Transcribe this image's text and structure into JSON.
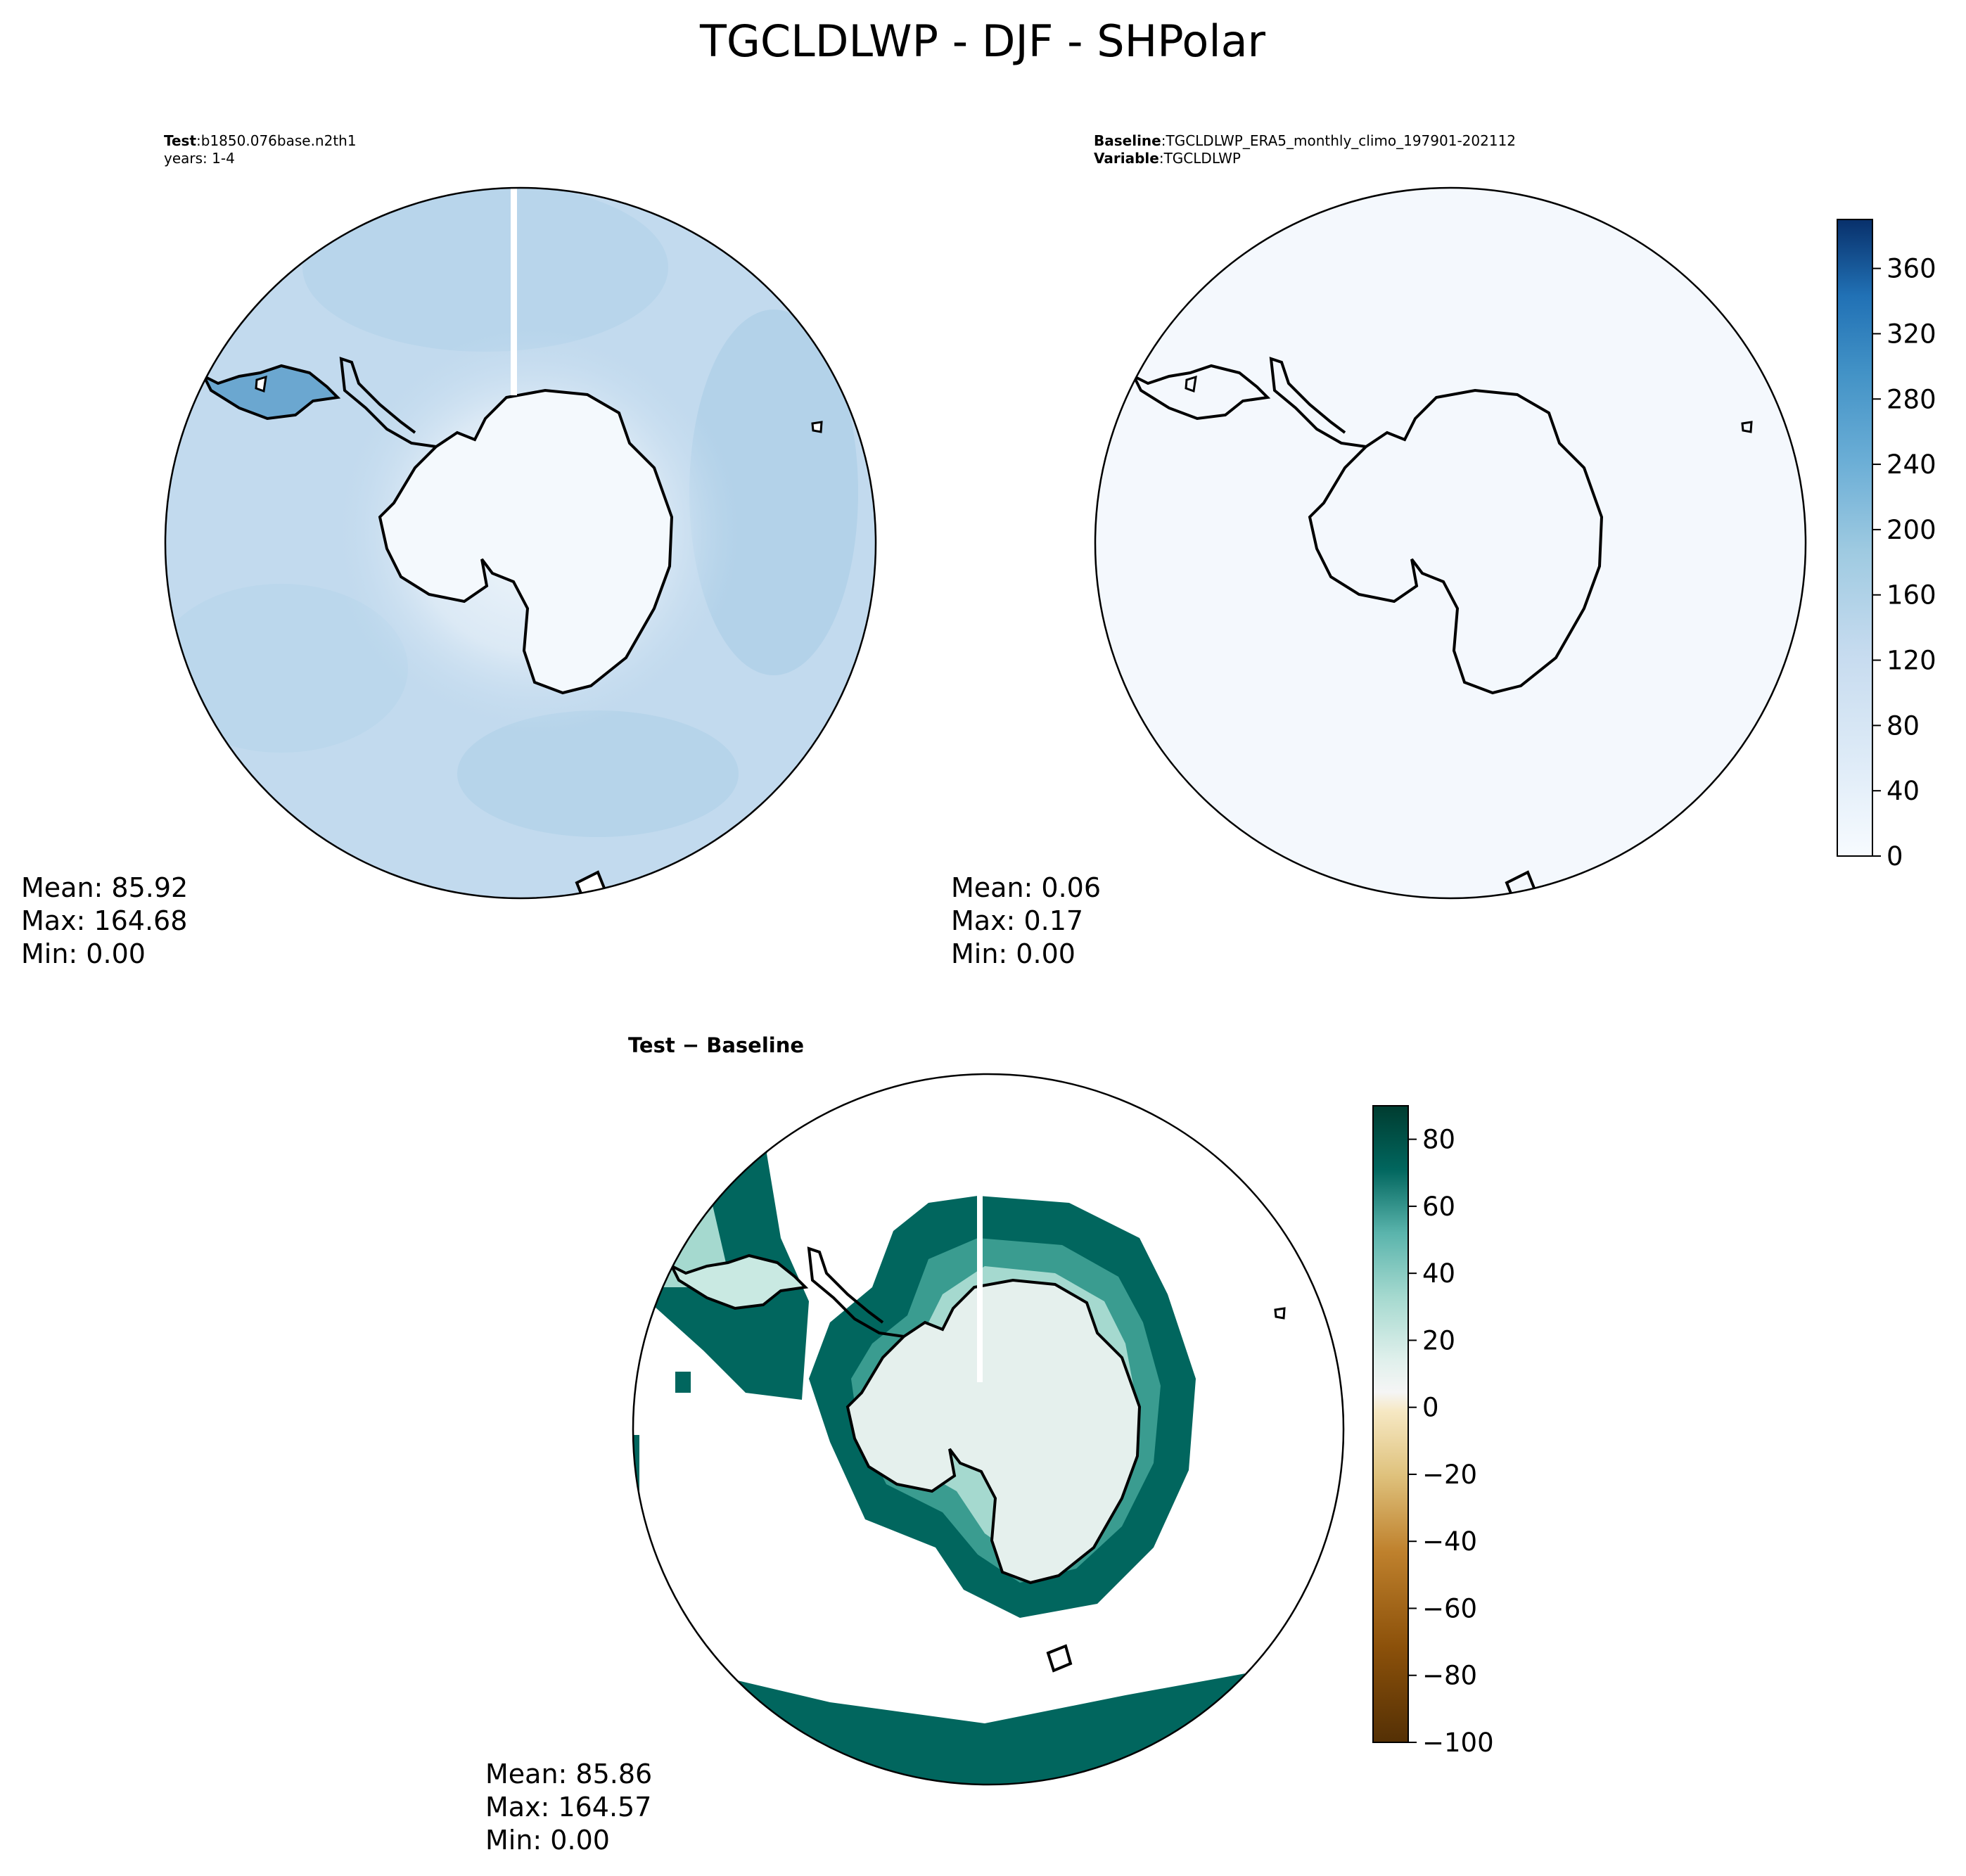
{
  "title": "TGCLDLWP - DJF - SHPolar",
  "panels": {
    "test": {
      "header_key": "Test",
      "header_value": "b1850.076base.n2th1",
      "subline": "years: 1-4",
      "stats": {
        "mean": "Mean: 85.92",
        "max": "Max: 164.68",
        "min": "Min:  0.00"
      }
    },
    "baseline": {
      "header_key": "Baseline",
      "header_value": "TGCLDLWP_ERA5_monthly_climo_197901-202112",
      "variable_key": "Variable",
      "variable_value": "TGCLDLWP",
      "stats": {
        "mean": "Mean:  0.06",
        "max": "Max:  0.17",
        "min": "Min:  0.00"
      }
    },
    "difference": {
      "header": "Test − Baseline",
      "stats": {
        "mean": "Mean: 85.86",
        "max": "Max: 164.57",
        "min": "Min:  0.00"
      }
    }
  },
  "colorbars": {
    "main": {
      "colormap": "Blues",
      "range": [
        0,
        390
      ],
      "ticks": [
        "0",
        "40",
        "80",
        "120",
        "160",
        "200",
        "240",
        "280",
        "320",
        "360"
      ]
    },
    "diff": {
      "colormap": "BrBG",
      "range": [
        -100,
        90
      ],
      "ticks": [
        "−100",
        "−80",
        "−60",
        "−40",
        "−20",
        "0",
        "20",
        "40",
        "60",
        "80"
      ]
    }
  },
  "colors": {
    "test_field": "#c2daee",
    "baseline_field": "#f4f8fd",
    "antarctica_interior": "#f4f9fd",
    "diff_positive": "#01665e",
    "diff_interior": "#e5f0ed"
  }
}
